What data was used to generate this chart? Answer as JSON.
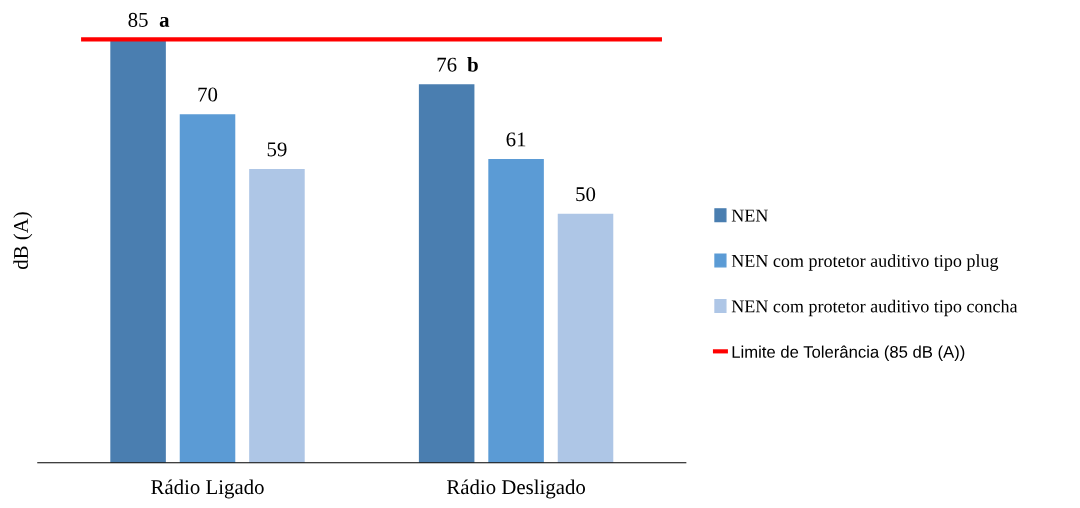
{
  "chart_data": {
    "type": "bar",
    "ylabel": "dB (A)",
    "categories": [
      "Rádio Ligado",
      "Rádio Desligado"
    ],
    "series": [
      {
        "name": "NEN",
        "color": "#4a7eb0",
        "values": [
          85,
          76
        ]
      },
      {
        "name": "NEN com protetor auditivo tipo plug",
        "color": "#5b9bd5",
        "values": [
          70,
          61
        ]
      },
      {
        "name": "NEN com protetor auditivo tipo concha",
        "color": "#aec6e6",
        "values": [
          59,
          50
        ]
      }
    ],
    "data_labels": true,
    "ref_lines": [
      {
        "axis": "y",
        "value": 85,
        "label": "Limite de Tolerância (85 dB (A))",
        "color": "#ff0000"
      }
    ],
    "annotations": [
      "a",
      "b"
    ],
    "legend": "right",
    "grid": false
  }
}
